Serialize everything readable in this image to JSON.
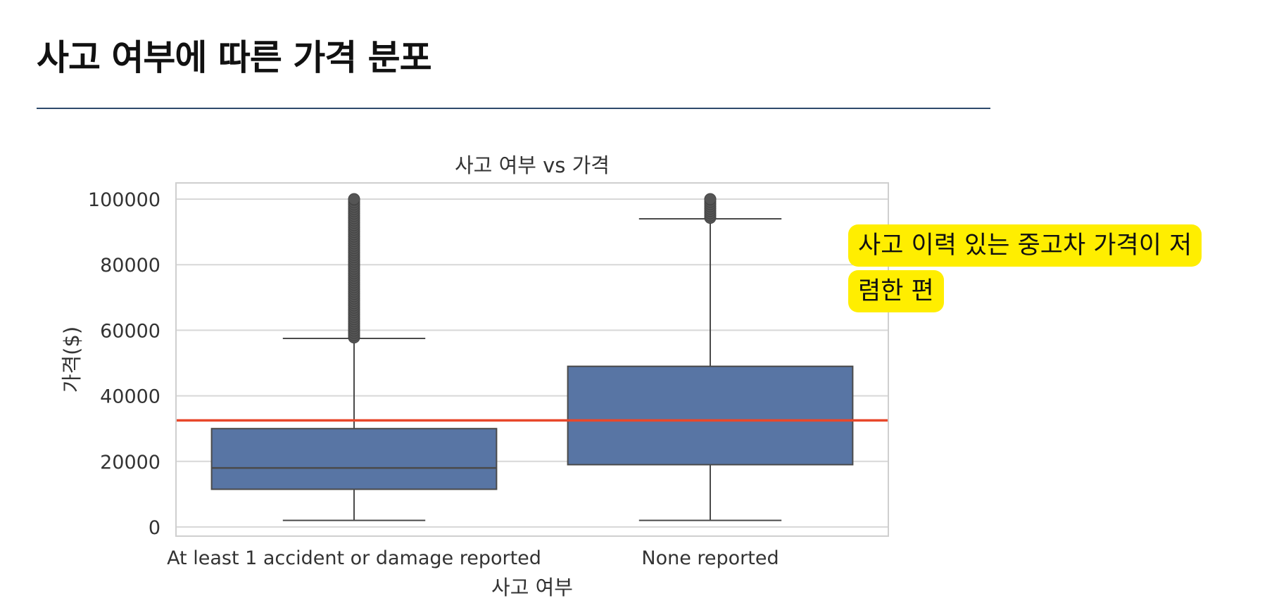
{
  "page": {
    "title": "사고 여부에 따른 가격 분포",
    "callout": "사고 이력 있는 중고차 가격이 저렴한 편"
  },
  "chart_data": {
    "type": "box",
    "title": "사고 여부 vs 가격",
    "xlabel": "사고 여부",
    "ylabel": "가격($)",
    "ylim": [
      -2500,
      105000
    ],
    "yticks": [
      0,
      20000,
      40000,
      60000,
      80000,
      100000
    ],
    "grid": true,
    "categories": [
      "At least 1 accident or damage reported",
      "None reported"
    ],
    "boxes": [
      {
        "category": "At least 1 accident or damage reported",
        "whisker_low": 2000,
        "q1": 11500,
        "median": 18000,
        "q3": 30000,
        "whisker_high": 57500,
        "outlier_range": [
          57500,
          100000
        ]
      },
      {
        "category": "None reported",
        "whisker_low": 2000,
        "q1": 19000,
        "median": 32500,
        "q3": 49000,
        "whisker_high": 94000,
        "outlier_range": [
          94000,
          100000
        ]
      }
    ],
    "reference_line": {
      "value": 32500,
      "color": "#e8472a"
    },
    "colors": {
      "box": "#5875a4",
      "line": "#4a4a4a",
      "grid": "#d8d8d8",
      "outlier": "#555555"
    }
  }
}
